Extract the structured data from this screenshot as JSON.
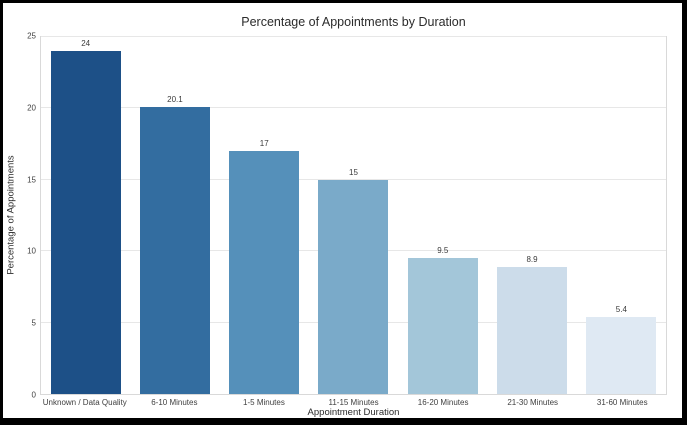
{
  "window": {
    "background": "#ffffff",
    "frame_border_color": "#000000",
    "plot_border_color": "#d9d9d9",
    "gridline_color": "#e7e7e7"
  },
  "chart_data": {
    "type": "bar",
    "title": "Percentage of Appointments by Duration",
    "xlabel": "Appointment Duration",
    "ylabel": "Percentage of Appointments",
    "categories": [
      "Unknown / Data Quality",
      "6-10 Minutes",
      "1-5 Minutes",
      "11-15 Minutes",
      "16-20 Minutes",
      "21-30 Minutes",
      "31-60 Minutes"
    ],
    "values": [
      24,
      20.1,
      17,
      15,
      9.5,
      8.9,
      5.4
    ],
    "value_labels": [
      "24",
      "20.1",
      "17",
      "15",
      "9.5",
      "8.9",
      "5.4"
    ],
    "bar_colors": [
      "#1d5087",
      "#336da0",
      "#5590ba",
      "#7aaac9",
      "#a3c6d9",
      "#ccdcea",
      "#dfe9f3"
    ],
    "yticks": [
      0,
      5,
      10,
      15,
      20,
      25
    ],
    "ylim": [
      0,
      25
    ],
    "grid": "horizontal",
    "legend": "none"
  }
}
